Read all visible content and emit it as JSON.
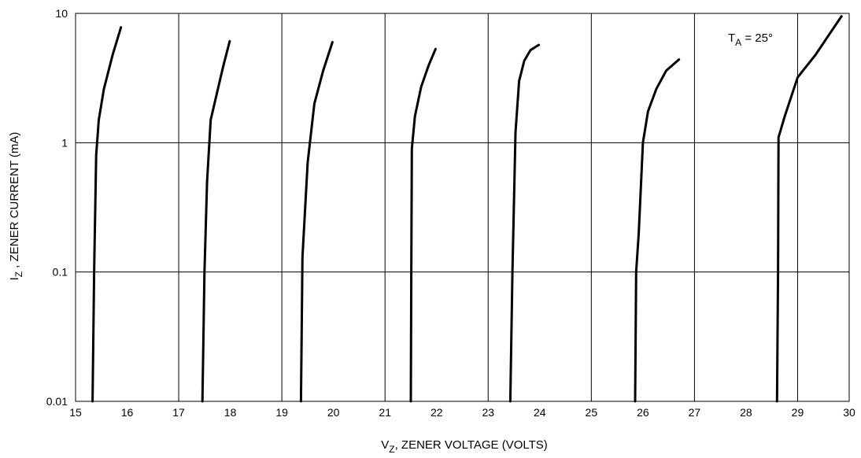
{
  "chart_data": {
    "type": "line",
    "title": "",
    "annotation": {
      "main": "T",
      "sub": "A",
      "rest": " = 25°"
    },
    "xlabel": {
      "main": "V",
      "sub": "Z",
      "rest": ", ZENER VOLTAGE (VOLTS)"
    },
    "ylabel": {
      "main": "I",
      "sub": "Z",
      "rest": " , ZENER CURRENT (mA)"
    },
    "xlim": [
      15,
      30
    ],
    "ylim": [
      0.01,
      10
    ],
    "yscale": "log",
    "grid": true,
    "legend": "none",
    "x_ticks": [
      "15",
      "16",
      "17",
      "18",
      "19",
      "20",
      "21",
      "22",
      "23",
      "24",
      "25",
      "26",
      "27",
      "28",
      "29",
      "30"
    ],
    "y_ticks": [
      {
        "value": 0.01,
        "label": "0.01"
      },
      {
        "value": 0.1,
        "label": "0.1"
      },
      {
        "value": 1,
        "label": "1"
      },
      {
        "value": 10,
        "label": "10"
      }
    ],
    "series": [
      {
        "points": [
          [
            15.33,
            0.01
          ],
          [
            15.36,
            0.1
          ],
          [
            15.4,
            0.8
          ],
          [
            15.45,
            1.5
          ],
          [
            15.55,
            2.6
          ],
          [
            15.72,
            4.8
          ],
          [
            15.88,
            7.8
          ]
        ]
      },
      {
        "points": [
          [
            17.46,
            0.01
          ],
          [
            17.5,
            0.1
          ],
          [
            17.55,
            0.5
          ],
          [
            17.62,
            1.5
          ],
          [
            17.75,
            2.5
          ],
          [
            17.87,
            4.0
          ],
          [
            17.99,
            6.1
          ]
        ]
      },
      {
        "points": [
          [
            19.37,
            0.01
          ],
          [
            19.4,
            0.13
          ],
          [
            19.5,
            0.7
          ],
          [
            19.63,
            2.0
          ],
          [
            19.8,
            3.6
          ],
          [
            19.98,
            6.0
          ]
        ]
      },
      {
        "points": [
          [
            21.5,
            0.01
          ],
          [
            21.51,
            0.1
          ],
          [
            21.52,
            0.9
          ],
          [
            21.58,
            1.6
          ],
          [
            21.7,
            2.7
          ],
          [
            21.85,
            4.0
          ],
          [
            21.98,
            5.3
          ]
        ]
      },
      {
        "points": [
          [
            23.43,
            0.01
          ],
          [
            23.47,
            0.1
          ],
          [
            23.53,
            1.2
          ],
          [
            23.6,
            3.0
          ],
          [
            23.7,
            4.3
          ],
          [
            23.82,
            5.2
          ],
          [
            23.98,
            5.7
          ]
        ]
      },
      {
        "points": [
          [
            25.85,
            0.01
          ],
          [
            25.87,
            0.1
          ],
          [
            25.92,
            0.2
          ],
          [
            26.0,
            1.0
          ],
          [
            26.1,
            1.75
          ],
          [
            26.26,
            2.6
          ],
          [
            26.45,
            3.6
          ],
          [
            26.7,
            4.4
          ]
        ]
      },
      {
        "points": [
          [
            28.6,
            0.01
          ],
          [
            28.62,
            0.1
          ],
          [
            28.63,
            1.1
          ],
          [
            28.75,
            1.6
          ],
          [
            29.0,
            3.2
          ],
          [
            29.35,
            4.8
          ],
          [
            29.85,
            9.5
          ]
        ]
      }
    ]
  }
}
